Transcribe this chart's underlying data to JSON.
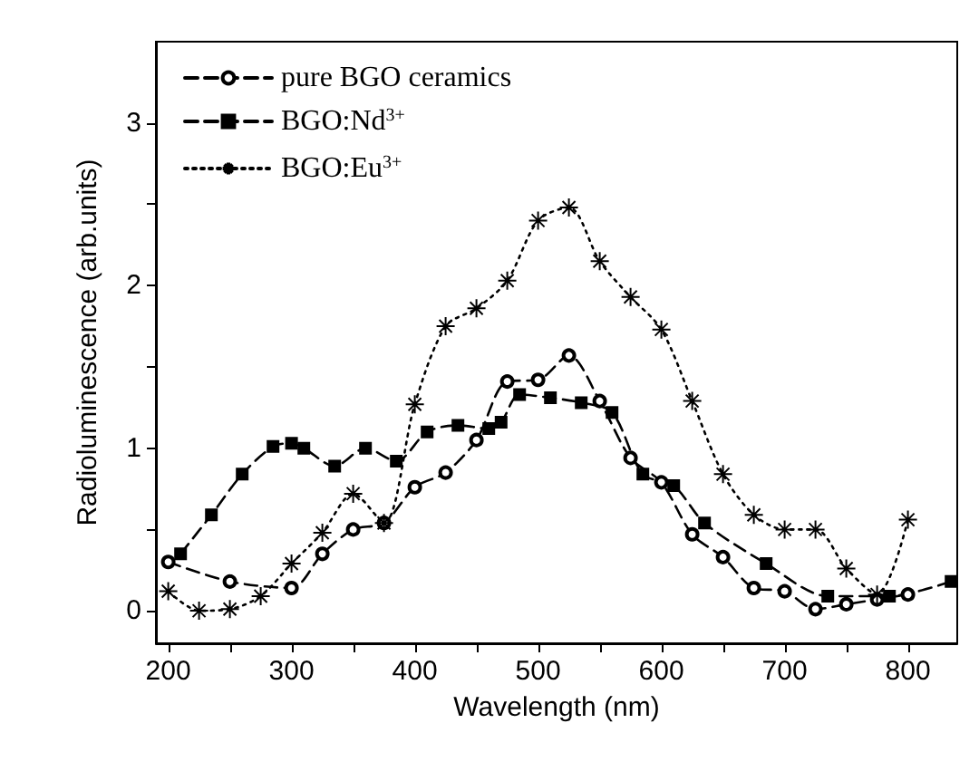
{
  "chart_data": {
    "type": "line",
    "xlabel": "Wavelength (nm)",
    "ylabel": "Radioluminescence (arb.units)",
    "xlim": [
      190,
      840
    ],
    "xticks": [
      200,
      {
        "value": 250,
        "label": null
      },
      300,
      {
        "value": 350,
        "label": null
      },
      400,
      {
        "value": 450,
        "label": null
      },
      500,
      {
        "value": 550,
        "label": null
      },
      600,
      {
        "value": 650,
        "label": null
      },
      700,
      {
        "value": 750,
        "label": null
      },
      800
    ],
    "ylim": [
      -0.2,
      3.5
    ],
    "yticks": [
      0,
      {
        "value": 0.5,
        "label": null
      },
      1,
      {
        "value": 1.5,
        "label": null
      },
      2,
      {
        "value": 2.5,
        "label": null
      },
      3
    ],
    "grid": false,
    "legend": "top left",
    "series": [
      {
        "name": "pure BGO ceramics",
        "color": "#000000",
        "line_style": "dashed",
        "marker": "circle",
        "x": [
          200,
          250,
          300,
          325,
          350,
          375,
          400,
          425,
          450,
          475,
          500,
          525,
          550,
          575,
          600,
          625,
          650,
          675,
          700,
          725,
          750,
          775,
          800
        ],
        "values": [
          0.3,
          0.18,
          0.14,
          0.35,
          0.5,
          0.54,
          0.76,
          0.85,
          1.05,
          1.41,
          1.42,
          1.57,
          1.29,
          0.94,
          0.79,
          0.47,
          0.33,
          0.14,
          0.12,
          0.01,
          0.04,
          0.07,
          0.1
        ]
      },
      {
        "name": "BGO:Nd$^{3+}$",
        "color": "#000000",
        "line_style": "dashed",
        "marker": "square",
        "x": [
          210,
          235,
          260,
          285,
          300,
          310,
          335,
          360,
          385,
          410,
          435,
          460,
          470,
          485,
          510,
          535,
          560,
          585,
          610,
          635,
          685,
          735,
          785,
          835
        ],
        "values": [
          0.35,
          0.59,
          0.84,
          1.01,
          1.03,
          1.0,
          0.89,
          1.0,
          0.92,
          1.1,
          1.14,
          1.12,
          1.16,
          1.33,
          1.31,
          1.28,
          1.22,
          0.84,
          0.77,
          0.54,
          0.29,
          0.09,
          0.09,
          0.18
        ]
      },
      {
        "name": "BGO:Eu$^{3+}$",
        "color": "#000000",
        "line_style": "dotted",
        "marker": "cross",
        "x": [
          200,
          225,
          250,
          275,
          300,
          325,
          350,
          375,
          400,
          425,
          450,
          475,
          500,
          525,
          550,
          575,
          600,
          625,
          650,
          675,
          700,
          725,
          750,
          775,
          800
        ],
        "values": [
          0.12,
          0.0,
          0.01,
          0.09,
          0.29,
          0.48,
          0.72,
          0.54,
          1.27,
          1.75,
          1.86,
          2.03,
          2.4,
          2.48,
          2.15,
          1.93,
          1.73,
          1.29,
          0.84,
          0.59,
          0.5,
          0.5,
          0.26,
          0.1,
          0.56
        ]
      }
    ]
  }
}
